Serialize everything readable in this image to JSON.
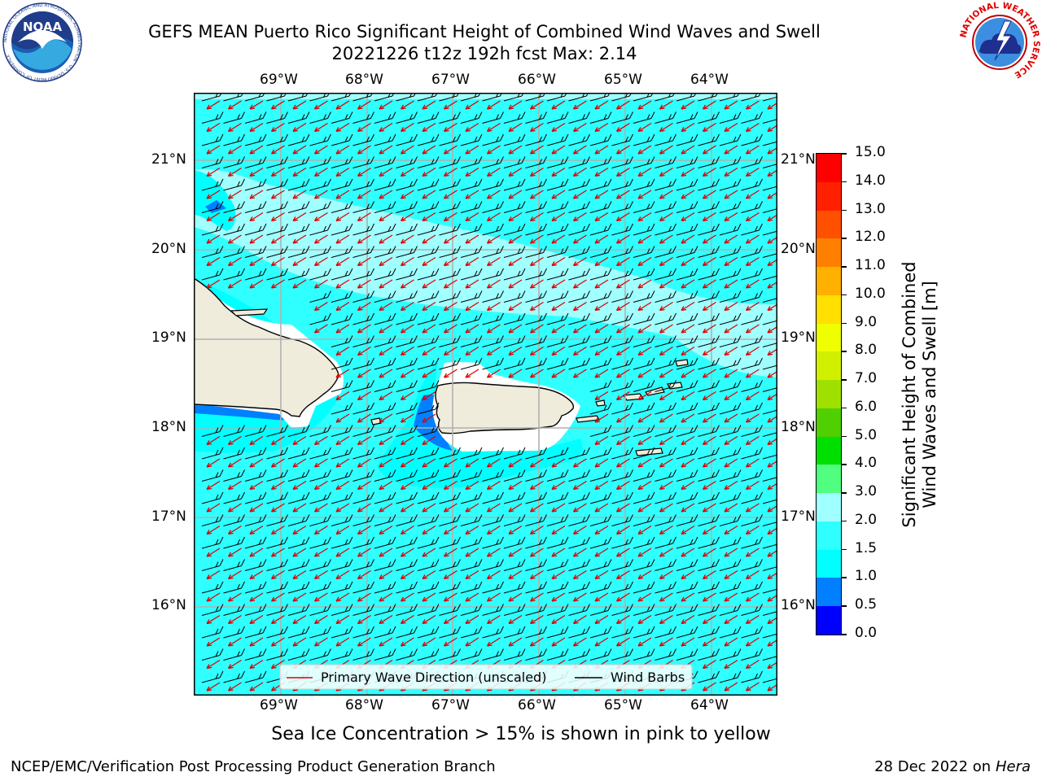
{
  "header": {
    "title_line1": "GEFS MEAN Puerto Rico Significant Height of Combined Wind Waves and Swell",
    "title_line2": "20221226 t12z 192h fcst   Max: 2.14",
    "left_logo_text": "NOAA",
    "left_logo_ring_text": "NATIONAL OCEANIC AND ATMOSPHERIC ADMINISTRATION · U.S. DEPARTMENT OF COMMERCE",
    "right_logo_ring_text": "NATIONAL WEATHER SERVICE"
  },
  "map": {
    "lon_labels": [
      "69°W",
      "68°W",
      "67°W",
      "66°W",
      "65°W",
      "64°W"
    ],
    "lat_labels": [
      "21°N",
      "20°N",
      "19°N",
      "18°N",
      "17°N",
      "16°N"
    ],
    "legend": {
      "wave_direction": "Primary Wave Direction (unscaled)",
      "wind_barbs": "Wind Barbs"
    },
    "colors": {
      "ocean_main": "#30ffff",
      "ocean_light": "#a0ffff",
      "ocean_mid": "#00ffff",
      "ocean_deep": "#0080ff",
      "land": "#efecdc"
    }
  },
  "colorbar": {
    "label_line1": "Significant Height of Combined",
    "label_line2": "Wind Waves and Swell [m]",
    "ticks": [
      "0.0",
      "0.5",
      "1.0",
      "1.5",
      "2.0",
      "3.0",
      "4.0",
      "5.0",
      "6.0",
      "7.0",
      "8.0",
      "9.0",
      "10.0",
      "11.0",
      "12.0",
      "13.0",
      "14.0",
      "15.0"
    ],
    "colors": [
      "#0000ff",
      "#0080ff",
      "#00ffff",
      "#30ffff",
      "#a0ffff",
      "#50ff80",
      "#00e000",
      "#50d000",
      "#a0e000",
      "#d0f000",
      "#f0ff00",
      "#ffe000",
      "#ffb000",
      "#ff8000",
      "#ff5000",
      "#ff2000",
      "#ff0000"
    ]
  },
  "note": "Sea Ice Concentration > 15% is shown in pink to yellow",
  "footer": {
    "left": "NCEP/EMC/Verification Post Processing Product Generation Branch",
    "right_date": "28 Dec 2022 on",
    "right_host": "Hera"
  }
}
